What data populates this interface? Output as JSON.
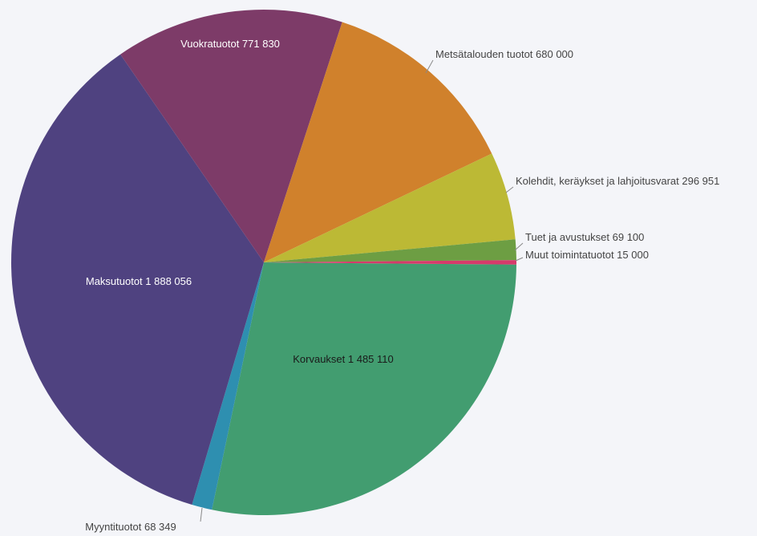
{
  "chart_data": {
    "type": "pie",
    "legend": "none",
    "slices": [
      {
        "label": "Korvaukset 1 485 110",
        "value": 1485110,
        "color": "#429d70",
        "label_style": "inside",
        "label_color": "#1a1a1a"
      },
      {
        "label": "Myyntituotot 68 349",
        "value": 68349,
        "color": "#2e8fb0",
        "label_style": "outside",
        "label_color": "#444444"
      },
      {
        "label": "Maksutuotot 1 888 056",
        "value": 1888056,
        "color": "#4f4280",
        "label_style": "inside",
        "label_color": "#ffffff"
      },
      {
        "label": "Vuokratuotot 771 830",
        "value": 771830,
        "color": "#7d3b68",
        "label_style": "inside",
        "label_color": "#ffffff"
      },
      {
        "label": "Metsätalouden tuotot 680 000",
        "value": 680000,
        "color": "#d0812c",
        "label_style": "outside",
        "label_color": "#444444"
      },
      {
        "label": "Kolehdit, keräykset ja lahjoitusvarat 296 951",
        "value": 296951,
        "color": "#bcb935",
        "label_style": "outside",
        "label_color": "#444444"
      },
      {
        "label": "Tuet ja avustukset 69 100",
        "value": 69100,
        "color": "#6d9e43",
        "label_style": "outside",
        "label_color": "#444444"
      },
      {
        "label": "Muut toimintatuotot 15 000",
        "value": 15000,
        "color": "#d63a6b",
        "label_style": "outside",
        "label_color": "#444444"
      }
    ]
  }
}
